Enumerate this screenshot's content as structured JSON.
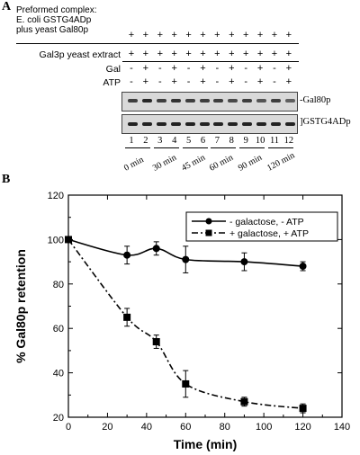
{
  "panelA": {
    "letter": "A",
    "header_lines": [
      "Preformed complex:",
      "E. coli GSTG4ADp",
      "plus yeast Gal80p"
    ],
    "rows": [
      {
        "label": "Gal3p yeast extract",
        "signs": [
          "+",
          "+",
          "+",
          "+",
          "+",
          "+",
          "+",
          "+",
          "+",
          "+",
          "+",
          "+"
        ]
      },
      {
        "label": "Gal",
        "signs": [
          "-",
          "+",
          "-",
          "+",
          "-",
          "+",
          "-",
          "+",
          "-",
          "+",
          "-",
          "+"
        ]
      },
      {
        "label": "ATP",
        "signs": [
          "-",
          "+",
          "-",
          "+",
          "-",
          "+",
          "-",
          "+",
          "-",
          "+",
          "-",
          "+"
        ]
      }
    ],
    "header_signs": [
      "+",
      "+",
      "+",
      "+",
      "+",
      "+",
      "+",
      "+",
      "+",
      "+",
      "+",
      "+"
    ],
    "blot_labels": {
      "top": "Gal80p",
      "bottom": "GSTG4ADp"
    },
    "lanes": [
      "1",
      "2",
      "3",
      "4",
      "5",
      "6",
      "7",
      "8",
      "9",
      "10",
      "11",
      "12"
    ],
    "times": [
      "0 min",
      "30 min",
      "45 min",
      "60 min",
      "90 min",
      "120 min"
    ]
  },
  "panelB": {
    "letter": "B",
    "chart_data": {
      "type": "line",
      "xlabel": "Time (min)",
      "ylabel": "% Gal80p retention",
      "xlim": [
        0,
        140
      ],
      "ylim": [
        20,
        120
      ],
      "xticks": [
        0,
        20,
        40,
        60,
        80,
        100,
        120,
        140
      ],
      "yticks": [
        20,
        40,
        60,
        80,
        100,
        120
      ],
      "legend_position": "top-right",
      "series": [
        {
          "name": "- galactose, - ATP",
          "marker": "circle",
          "line": "solid",
          "x": [
            0,
            30,
            45,
            60,
            90,
            120
          ],
          "y": [
            100,
            93,
            96,
            91,
            90,
            88
          ],
          "err": [
            0,
            4,
            3,
            6,
            4,
            2
          ]
        },
        {
          "name": "+ galactose, + ATP",
          "marker": "square",
          "line": "dash-dot",
          "x": [
            0,
            30,
            45,
            60,
            90,
            120
          ],
          "y": [
            100,
            65,
            54,
            35,
            27,
            24
          ],
          "err": [
            0,
            4,
            3,
            6,
            2,
            2
          ]
        }
      ]
    }
  }
}
